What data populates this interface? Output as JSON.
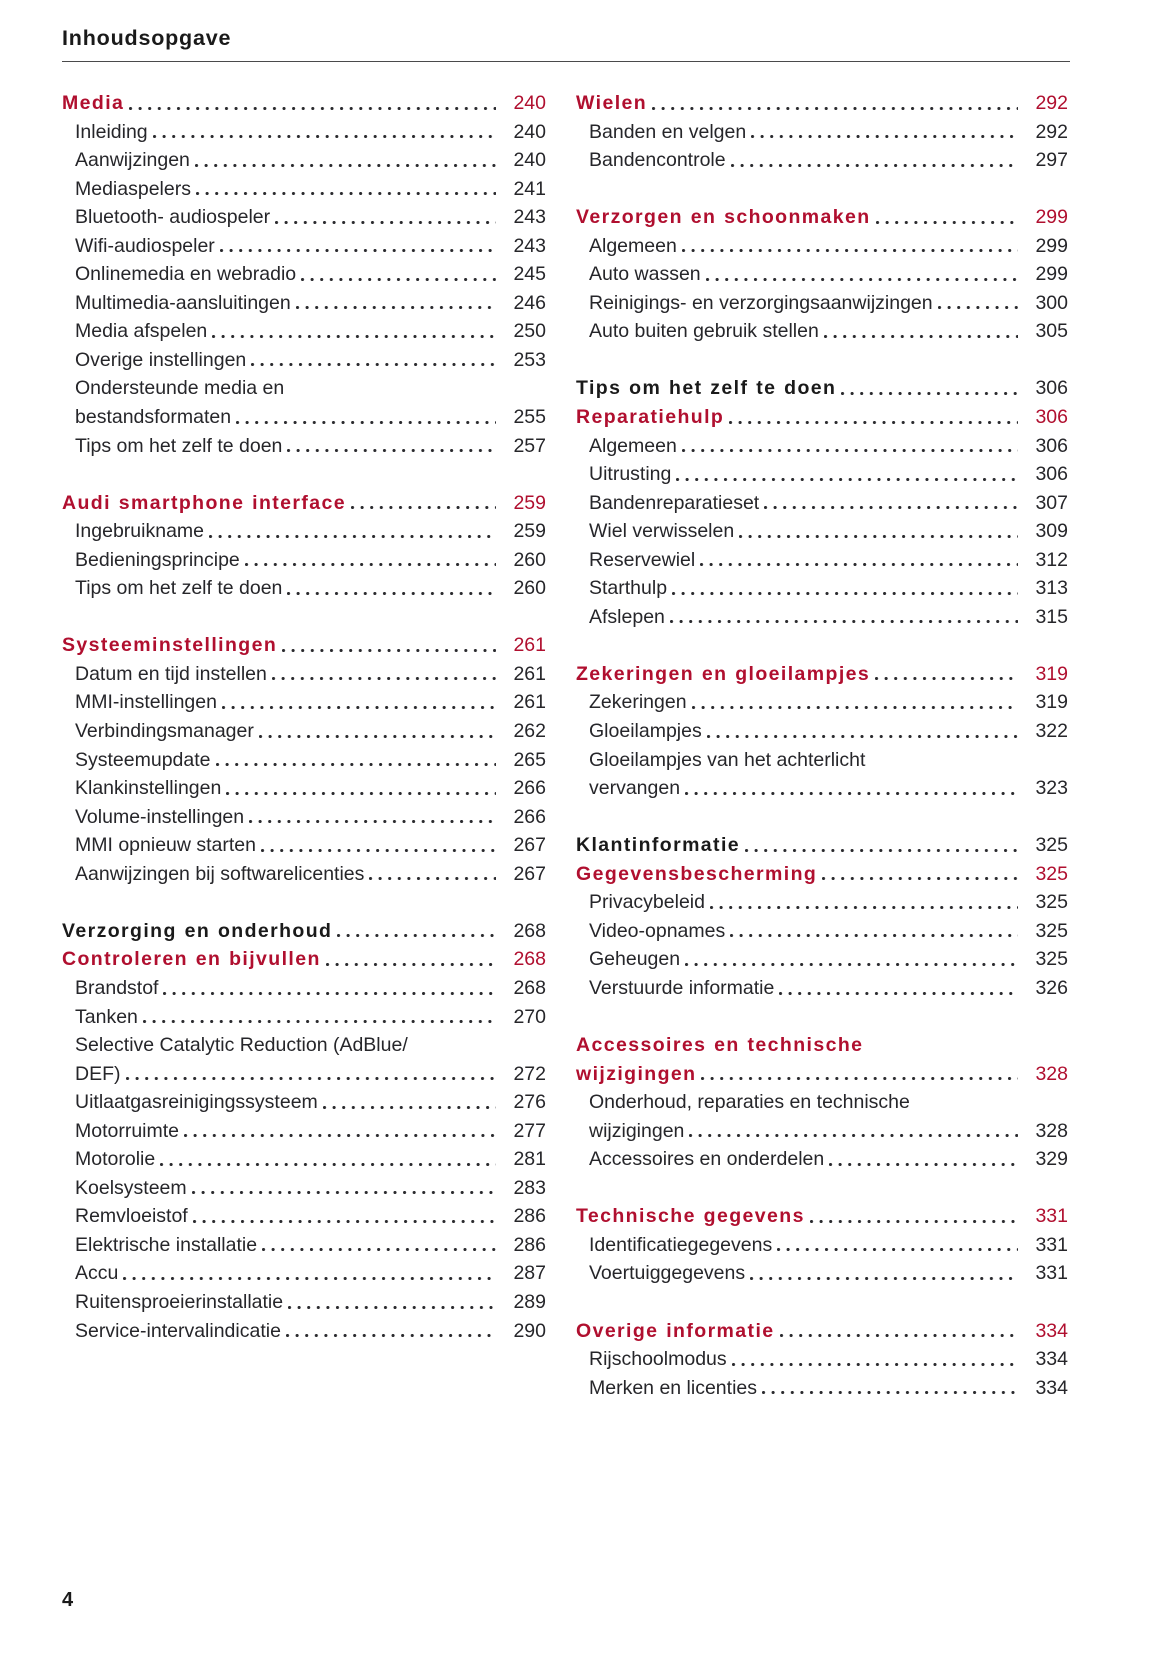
{
  "page": {
    "title": "Inhoudsopgave",
    "footer_page_number": "4"
  },
  "colors": {
    "accent_red": "#b00f2f",
    "text": "#26262a",
    "heading_black": "#1a1a1a",
    "rule_gray": "#4a4a4b",
    "leader_dot": "#2a2a2e"
  },
  "columns": [
    {
      "sections": [
        {
          "entries": [
            {
              "type": "heading-red",
              "label": "Media",
              "page": "240"
            },
            {
              "type": "sub",
              "label": "Inleiding",
              "page": "240"
            },
            {
              "type": "sub",
              "label": "Aanwijzingen",
              "page": "240"
            },
            {
              "type": "sub",
              "label": "Mediaspelers",
              "page": "241"
            },
            {
              "type": "sub",
              "label": "Bluetooth- audiospeler",
              "page": "243"
            },
            {
              "type": "sub",
              "label": "Wifi-audiospeler",
              "page": "243"
            },
            {
              "type": "sub",
              "label": "Onlinemedia en webradio",
              "page": "245"
            },
            {
              "type": "sub",
              "label": "Multimedia-aansluitingen",
              "page": "246"
            },
            {
              "type": "sub",
              "label": "Media afspelen",
              "page": "250"
            },
            {
              "type": "sub",
              "label": "Overige instellingen",
              "page": "253"
            },
            {
              "type": "sub",
              "lines": [
                "Ondersteunde media en",
                "bestandsformaten"
              ],
              "page": "255"
            },
            {
              "type": "sub",
              "label": "Tips om het zelf te doen",
              "page": "257"
            }
          ]
        },
        {
          "entries": [
            {
              "type": "heading-red",
              "label": "Audi smartphone interface",
              "page": "259"
            },
            {
              "type": "sub",
              "label": "Ingebruikname",
              "page": "259"
            },
            {
              "type": "sub",
              "label": "Bedieningsprincipe",
              "page": "260"
            },
            {
              "type": "sub",
              "label": "Tips om het zelf te doen",
              "page": "260"
            }
          ]
        },
        {
          "entries": [
            {
              "type": "heading-red",
              "label": "Systeeminstellingen",
              "page": "261"
            },
            {
              "type": "sub",
              "label": "Datum en tijd instellen",
              "page": "261"
            },
            {
              "type": "sub",
              "label": "MMI-instellingen",
              "page": "261"
            },
            {
              "type": "sub",
              "label": "Verbindingsmanager",
              "page": "262"
            },
            {
              "type": "sub",
              "label": "Systeemupdate",
              "page": "265"
            },
            {
              "type": "sub",
              "label": "Klankinstellingen",
              "page": "266"
            },
            {
              "type": "sub",
              "label": "Volume-instellingen",
              "page": "266"
            },
            {
              "type": "sub",
              "label": "MMI opnieuw starten",
              "page": "267"
            },
            {
              "type": "sub",
              "label": "Aanwijzingen bij softwarelicenties",
              "page": "267"
            }
          ]
        },
        {
          "entries": [
            {
              "type": "heading-black",
              "label": "Verzorging en onderhoud",
              "page": "268"
            },
            {
              "type": "heading-red",
              "label": "Controleren en bijvullen",
              "page": "268"
            },
            {
              "type": "sub",
              "label": "Brandstof",
              "page": "268"
            },
            {
              "type": "sub",
              "label": "Tanken",
              "page": "270"
            },
            {
              "type": "sub",
              "lines": [
                "Selective Catalytic Reduction (AdBlue/",
                "DEF)"
              ],
              "page": "272"
            },
            {
              "type": "sub",
              "label": "Uitlaatgasreinigingssysteem",
              "page": "276"
            },
            {
              "type": "sub",
              "label": "Motorruimte",
              "page": "277"
            },
            {
              "type": "sub",
              "label": "Motorolie",
              "page": "281"
            },
            {
              "type": "sub",
              "label": "Koelsysteem",
              "page": "283"
            },
            {
              "type": "sub",
              "label": "Remvloeistof",
              "page": "286"
            },
            {
              "type": "sub",
              "label": "Elektrische installatie",
              "page": "286"
            },
            {
              "type": "sub",
              "label": "Accu",
              "page": "287"
            },
            {
              "type": "sub",
              "label": "Ruitensproeierinstallatie",
              "page": "289"
            },
            {
              "type": "sub",
              "label": "Service-intervalindicatie",
              "page": "290"
            }
          ]
        }
      ]
    },
    {
      "sections": [
        {
          "entries": [
            {
              "type": "heading-red",
              "label": "Wielen",
              "page": "292"
            },
            {
              "type": "sub",
              "label": "Banden en velgen",
              "page": "292"
            },
            {
              "type": "sub",
              "label": "Bandencontrole",
              "page": "297"
            }
          ]
        },
        {
          "entries": [
            {
              "type": "heading-red",
              "label": "Verzorgen en schoonmaken",
              "page": "299"
            },
            {
              "type": "sub",
              "label": "Algemeen",
              "page": "299"
            },
            {
              "type": "sub",
              "label": "Auto wassen",
              "page": "299"
            },
            {
              "type": "sub",
              "label": "Reinigings- en verzorgingsaanwijzingen",
              "page": "300"
            },
            {
              "type": "sub",
              "label": "Auto buiten gebruik stellen",
              "page": "305"
            }
          ]
        },
        {
          "entries": [
            {
              "type": "heading-black",
              "label": "Tips om het zelf te doen",
              "page": "306"
            },
            {
              "type": "heading-red",
              "label": "Reparatiehulp",
              "page": "306"
            },
            {
              "type": "sub",
              "label": "Algemeen",
              "page": "306"
            },
            {
              "type": "sub",
              "label": "Uitrusting",
              "page": "306"
            },
            {
              "type": "sub",
              "label": "Bandenreparatieset",
              "page": "307"
            },
            {
              "type": "sub",
              "label": "Wiel verwisselen",
              "page": "309"
            },
            {
              "type": "sub",
              "label": "Reservewiel",
              "page": "312"
            },
            {
              "type": "sub",
              "label": "Starthulp",
              "page": "313"
            },
            {
              "type": "sub",
              "label": "Afslepen",
              "page": "315"
            }
          ]
        },
        {
          "entries": [
            {
              "type": "heading-red",
              "label": "Zekeringen en gloeilampjes",
              "page": "319"
            },
            {
              "type": "sub",
              "label": "Zekeringen",
              "page": "319"
            },
            {
              "type": "sub",
              "label": "Gloeilampjes",
              "page": "322"
            },
            {
              "type": "sub",
              "lines": [
                "Gloeilampjes van het achterlicht",
                "vervangen"
              ],
              "page": "323"
            }
          ]
        },
        {
          "entries": [
            {
              "type": "heading-black",
              "label": "Klantinformatie",
              "page": "325"
            },
            {
              "type": "heading-red",
              "label": "Gegevensbescherming",
              "page": "325"
            },
            {
              "type": "sub",
              "label": "Privacybeleid",
              "page": "325"
            },
            {
              "type": "sub",
              "label": "Video-opnames",
              "page": "325"
            },
            {
              "type": "sub",
              "label": "Geheugen",
              "page": "325"
            },
            {
              "type": "sub",
              "label": "Verstuurde informatie",
              "page": "326"
            }
          ]
        },
        {
          "entries": [
            {
              "type": "heading-red",
              "lines": [
                "Accessoires en technische",
                "wijzigingen"
              ],
              "page": "328"
            },
            {
              "type": "sub",
              "lines": [
                "Onderhoud, reparaties en technische",
                "wijzigingen"
              ],
              "page": "328"
            },
            {
              "type": "sub",
              "label": "Accessoires en onderdelen",
              "page": "329"
            }
          ]
        },
        {
          "entries": [
            {
              "type": "heading-red",
              "label": "Technische gegevens",
              "page": "331"
            },
            {
              "type": "sub",
              "label": "Identificatiegegevens",
              "page": "331"
            },
            {
              "type": "sub",
              "label": "Voertuiggegevens",
              "page": "331"
            }
          ]
        },
        {
          "entries": [
            {
              "type": "heading-red",
              "label": "Overige informatie",
              "page": "334"
            },
            {
              "type": "sub",
              "label": "Rijschoolmodus",
              "page": "334"
            },
            {
              "type": "sub",
              "label": "Merken en licenties",
              "page": "334"
            }
          ]
        }
      ]
    }
  ]
}
